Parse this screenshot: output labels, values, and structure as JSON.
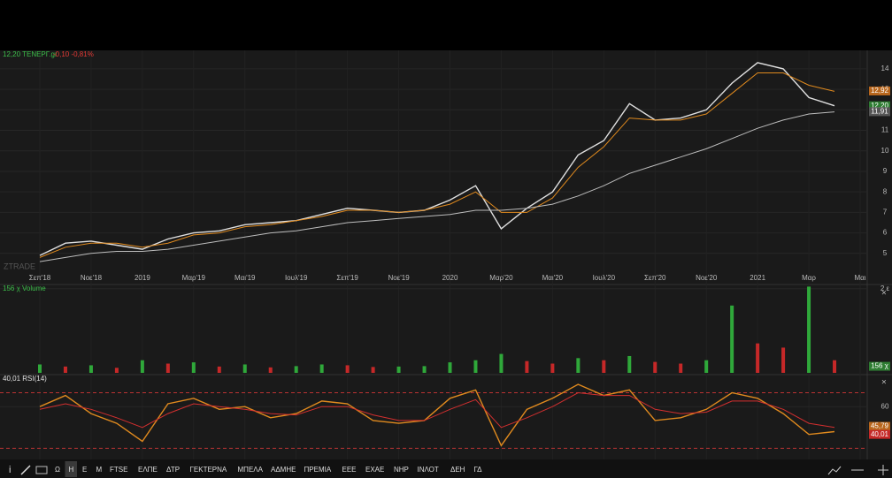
{
  "chart_data": [
    {
      "type": "line",
      "title": "12,20 ΤΕΝΕΡΓ.gr",
      "subtitle": "-0,10 -0,81%",
      "watermark": "ZTRADE",
      "categories": [
        "Σεπ'18",
        null,
        "Νοε'18",
        null,
        "2019",
        null,
        "Μαρ'19",
        null,
        "Μαι'19",
        null,
        "Ιουλ'19",
        null,
        "Σεπ'19",
        null,
        "Νοε'19",
        null,
        "2020",
        null,
        "Μαρ'20",
        null,
        "Μαι'20",
        null,
        "Ιουλ'20",
        null,
        "Σεπ'20",
        null,
        "Νοε'20",
        null,
        "2021",
        null,
        "Μαρ",
        null,
        "Μαι"
      ],
      "series": [
        {
          "color": "#e0e0e0",
          "values": [
            4.9,
            5.5,
            5.6,
            5.4,
            5.2,
            5.7,
            6.0,
            6.1,
            6.4,
            6.5,
            6.6,
            6.9,
            7.2,
            7.1,
            7.0,
            7.1,
            7.6,
            8.3,
            6.2,
            7.2,
            8.0,
            9.8,
            10.5,
            12.3,
            11.5,
            11.6,
            12.0,
            13.3,
            14.3,
            14.0,
            12.6,
            12.2,
            null
          ]
        },
        {
          "color": "#e08a1e",
          "values": [
            4.8,
            5.3,
            5.5,
            5.5,
            5.3,
            5.5,
            5.9,
            6.0,
            6.3,
            6.4,
            6.6,
            6.8,
            7.1,
            7.1,
            7.0,
            7.1,
            7.4,
            8.0,
            7.0,
            7.0,
            7.7,
            9.2,
            10.2,
            11.6,
            11.5,
            11.5,
            11.8,
            12.8,
            13.8,
            13.8,
            13.2,
            12.9,
            null
          ]
        },
        {
          "color": "#bdbdbd",
          "values": [
            4.6,
            4.8,
            5.0,
            5.1,
            5.1,
            5.2,
            5.4,
            5.6,
            5.8,
            6.0,
            6.1,
            6.3,
            6.5,
            6.6,
            6.7,
            6.8,
            6.9,
            7.1,
            7.1,
            7.2,
            7.4,
            7.8,
            8.3,
            8.9,
            9.3,
            9.7,
            10.1,
            10.6,
            11.1,
            11.5,
            11.8,
            11.9,
            null
          ]
        }
      ],
      "ylim": [
        4,
        14.9
      ],
      "yticks": [
        5,
        6,
        7,
        8,
        9,
        10,
        11,
        12,
        13,
        14
      ],
      "markers": [
        {
          "value": 12.92,
          "label": "12,92",
          "color": "#b8661c"
        },
        {
          "value": 12.2,
          "label": "12,20",
          "color": "#2e7d32"
        },
        {
          "value": 11.91,
          "label": "11,91",
          "color": "#555555"
        }
      ]
    },
    {
      "type": "bar",
      "title": "156 χ Volume",
      "up_color": "#2fa83a",
      "down_color": "#c62828",
      "values": [
        200000,
        150000,
        180000,
        120000,
        300000,
        220000,
        250000,
        150000,
        200000,
        130000,
        160000,
        200000,
        180000,
        140000,
        150000,
        160000,
        250000,
        300000,
        450000,
        280000,
        220000,
        350000,
        300000,
        400000,
        260000,
        220000,
        300000,
        1600000,
        700000,
        600000,
        2050000,
        300000,
        null
      ],
      "ylim": [
        0,
        2100000
      ],
      "yticks": [
        {
          "value": 2000000,
          "label": "2 ε"
        }
      ],
      "markers": [
        {
          "value": 156000,
          "label": "156 χ",
          "color": "#2e7d32"
        }
      ]
    },
    {
      "type": "line",
      "title": "40,01 RSI(14)",
      "series": [
        {
          "color": "#e08a1e",
          "values": [
            60,
            68,
            55,
            48,
            35,
            62,
            66,
            58,
            60,
            52,
            55,
            64,
            62,
            50,
            48,
            50,
            66,
            72,
            32,
            58,
            66,
            76,
            68,
            72,
            50,
            52,
            58,
            70,
            66,
            55,
            40,
            42,
            null
          ]
        },
        {
          "color": "#d32f2f",
          "values": [
            58,
            62,
            58,
            52,
            45,
            55,
            62,
            60,
            58,
            55,
            54,
            60,
            60,
            54,
            50,
            50,
            58,
            65,
            45,
            52,
            60,
            70,
            68,
            68,
            58,
            55,
            56,
            64,
            64,
            58,
            48,
            45,
            null
          ]
        }
      ],
      "levels": [
        30,
        70
      ],
      "ylim": [
        22,
        83
      ],
      "yticks": [
        60
      ],
      "markers": [
        {
          "value": 45.79,
          "label": "45,79",
          "color": "#b8661c"
        },
        {
          "value": 40.01,
          "label": "40,01",
          "color": "#c62828"
        }
      ]
    }
  ],
  "toolbar": {
    "items": [
      "Ω",
      "Η",
      "Ε",
      "Μ",
      "FTSE",
      "ΕΛΠΕ",
      "ΔΤΡ",
      "ΓΕΚΤΕΡΝΑ",
      "ΜΠΕΛΑ",
      "ΑΔΜΗΕ",
      "ΠΡΕΜΙΑ",
      "ΕΕΕ",
      "ΕΧΑΕ",
      "ΝΗΡ",
      "ΙΝΛΟΤ",
      "ΔΕΗ",
      "ΓΔ"
    ],
    "active": "Η"
  }
}
